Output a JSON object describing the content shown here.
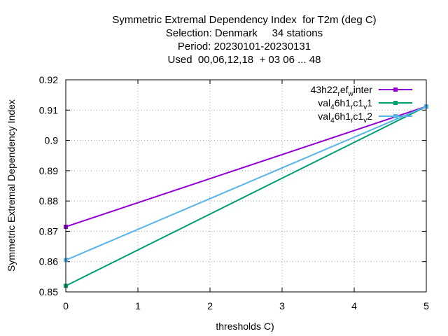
{
  "chart_data": {
    "type": "line",
    "title_lines": [
      "Symmetric Extremal Dependency Index  for T2m (deg C)",
      "Selection: Denmark     34 stations",
      "Period: 20230101-20230131",
      "Used  00,06,12,18  + 03 06 ... 48"
    ],
    "xlabel": "thresholds C)",
    "ylabel": "Symmetric Extremal Dependency Index",
    "xlim": [
      0,
      5
    ],
    "ylim": [
      0.85,
      0.92
    ],
    "xticks": [
      "0",
      "1",
      "2",
      "3",
      "4",
      "5"
    ],
    "yticks": [
      "0.85",
      "0.86",
      "0.87",
      "0.88",
      "0.89",
      "0.9",
      "0.91",
      "0.92"
    ],
    "grid": true,
    "legend_position": "top-right",
    "series": [
      {
        "legend": [
          {
            "text": "43h22",
            "sub": false
          },
          {
            "text": "r",
            "sub": true
          },
          {
            "text": "ef",
            "sub": false
          },
          {
            "text": "w",
            "sub": true
          },
          {
            "text": "inter",
            "sub": false
          }
        ],
        "color": "#9400d3",
        "x": [
          0,
          5
        ],
        "y": [
          0.8715,
          0.9112
        ]
      },
      {
        "legend": [
          {
            "text": "val",
            "sub": false
          },
          {
            "text": "4",
            "sub": true
          },
          {
            "text": "6h1",
            "sub": false
          },
          {
            "text": "r",
            "sub": true
          },
          {
            "text": "c1",
            "sub": false
          },
          {
            "text": "v",
            "sub": true
          },
          {
            "text": "1",
            "sub": false
          }
        ],
        "color": "#009e73",
        "x": [
          0,
          5
        ],
        "y": [
          0.852,
          0.9112
        ]
      },
      {
        "legend": [
          {
            "text": "val",
            "sub": false
          },
          {
            "text": "4",
            "sub": true
          },
          {
            "text": "6h1",
            "sub": false
          },
          {
            "text": "r",
            "sub": true
          },
          {
            "text": "c1",
            "sub": false
          },
          {
            "text": "v",
            "sub": true
          },
          {
            "text": "2",
            "sub": false
          }
        ],
        "color": "#56b4e9",
        "x": [
          0,
          5
        ],
        "y": [
          0.8605,
          0.9112
        ]
      }
    ]
  }
}
